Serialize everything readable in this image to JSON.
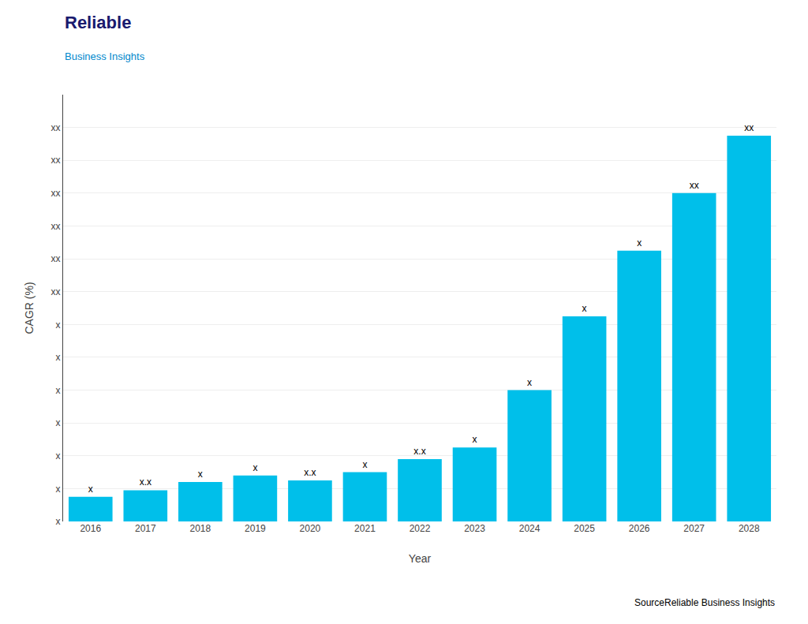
{
  "chart_data": {
    "type": "bar",
    "categories": [
      "2016",
      "2017",
      "2018",
      "2019",
      "2020",
      "2021",
      "2022",
      "2023",
      "2024",
      "2025",
      "2026",
      "2027",
      "2028"
    ],
    "values": [
      1.5,
      1.9,
      2.4,
      2.8,
      2.5,
      3.0,
      3.8,
      4.5,
      8.0,
      12.5,
      16.5,
      20.0,
      23.5
    ],
    "value_labels": [
      "x",
      "x.x",
      "x",
      "x",
      "x.x",
      "x",
      "x.x",
      "x",
      "x",
      "x",
      "x",
      "xx",
      "xx"
    ],
    "data_labels": true,
    "color": "#00BFEA",
    "xlabel": "Year",
    "ylabel": "CAGR (%)",
    "ylim": [
      0,
      26
    ],
    "yticks": [
      {
        "value": 0,
        "label": "x"
      },
      {
        "value": 2,
        "label": "x"
      },
      {
        "value": 4,
        "label": "x"
      },
      {
        "value": 6,
        "label": "x"
      },
      {
        "value": 8,
        "label": "x"
      },
      {
        "value": 10,
        "label": "x"
      },
      {
        "value": 12,
        "label": "x"
      },
      {
        "value": 14,
        "label": "xx"
      },
      {
        "value": 16,
        "label": "xx"
      },
      {
        "value": 18,
        "label": "xx"
      },
      {
        "value": 20,
        "label": "xx"
      },
      {
        "value": 22,
        "label": "xx"
      },
      {
        "value": 24,
        "label": "xx"
      }
    ],
    "grid": true,
    "annotations": [
      "Reliable",
      "Business Insights",
      "SourceReliable Business Insights"
    ]
  }
}
